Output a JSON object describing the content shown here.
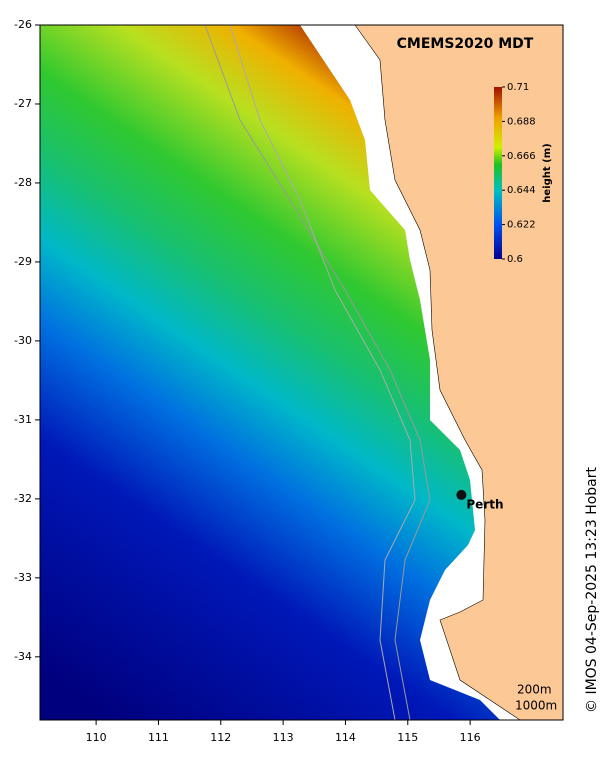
{
  "map": {
    "title": "CMEMS2020 MDT",
    "xlim": [
      109.1,
      117.49
    ],
    "ylim": [
      -34.8,
      -26
    ],
    "xticks": [
      110,
      111,
      112,
      113,
      114,
      115,
      116
    ],
    "yticks": [
      -26,
      -27,
      -28,
      -29,
      -30,
      -31,
      -32,
      -33,
      -34
    ],
    "colorbar": {
      "label": "height (m)",
      "clim": [
        0.6,
        0.71
      ],
      "ticks": [
        0.6,
        0.622,
        0.644,
        0.666,
        0.688,
        0.71
      ]
    },
    "places": [
      {
        "name": "Perth",
        "lon": 115.86,
        "lat": -31.95
      }
    ],
    "contour_legend": [
      "200m",
      "1000m"
    ],
    "credit": "© IMOS 04-Sep-2025 13:23 Hobart"
  }
}
